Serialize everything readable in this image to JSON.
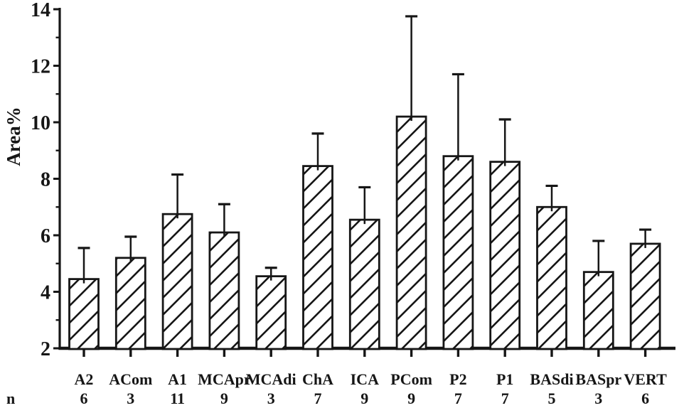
{
  "figure": {
    "background": "#ffffff",
    "ink_color": "#161616",
    "kind": "scanned scientific bar chart with hatched bars and upper error bars"
  },
  "chart_data": {
    "type": "bar",
    "title": "",
    "xlabel": "",
    "ylabel": "Area%",
    "ylim": [
      2,
      14
    ],
    "yticks_major": [
      2,
      4,
      6,
      8,
      10,
      12,
      14
    ],
    "yticks_minor": [
      3,
      5,
      7,
      9,
      11,
      13
    ],
    "grid": false,
    "legend": "none",
    "error_bars": "upper-only",
    "bar_fill": "#ffffff",
    "bar_hatch": "diagonal-forward",
    "categories": [
      "A2",
      "ACom",
      "A1",
      "MCApr",
      "MCAdi",
      "ChA",
      "ICA",
      "PCom",
      "P2",
      "P1",
      "BASdi",
      "BASpr",
      "VERT"
    ],
    "values": [
      4.45,
      5.2,
      6.75,
      6.1,
      4.55,
      8.45,
      6.55,
      10.2,
      8.8,
      8.6,
      7.0,
      4.7,
      5.7
    ],
    "errors_upper": [
      1.1,
      0.75,
      1.4,
      1.0,
      0.3,
      1.15,
      1.15,
      3.55,
      2.9,
      1.5,
      0.75,
      1.1,
      0.5
    ],
    "n_row_label": "n",
    "n_values": [
      6,
      3,
      11,
      9,
      3,
      7,
      9,
      9,
      7,
      7,
      5,
      3,
      6
    ]
  }
}
